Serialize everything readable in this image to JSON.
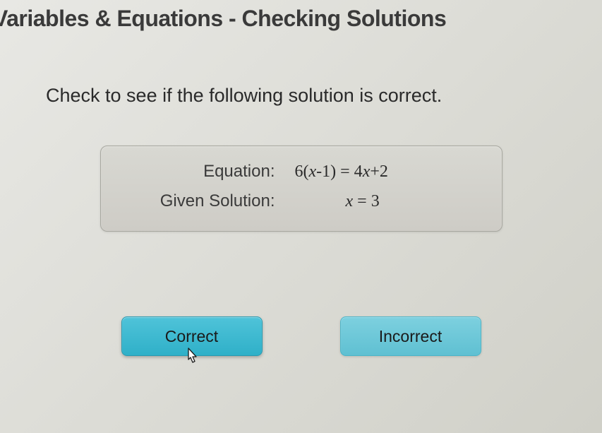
{
  "header": {
    "title": "Variables & Equations - Checking Solutions"
  },
  "instruction": "Check to see if the following solution is correct.",
  "problem": {
    "equation_label": "Equation:",
    "equation_html": "6(<span class='var'>x</span>-1) = 4<span class='var'>x</span>+2",
    "solution_label": "Given Solution:",
    "solution_html": "<span class='var'>x</span> = 3"
  },
  "buttons": {
    "correct": "Correct",
    "incorrect": "Incorrect"
  },
  "styling": {
    "background_gradient": [
      "#e8e8e4",
      "#d0d0c8"
    ],
    "title_color": "#3a3a3a",
    "title_fontsize": 32,
    "instruction_fontsize": 27,
    "box_bg": "#d4d3cd",
    "box_border": "#a8a8a0",
    "btn_correct_bg": [
      "#4fc3d9",
      "#2fb0c8"
    ],
    "btn_incorrect_bg": [
      "#7dd0df",
      "#5fc0d2"
    ],
    "btn_fontsize": 23,
    "btn_width": 200,
    "btn_height": 56
  }
}
